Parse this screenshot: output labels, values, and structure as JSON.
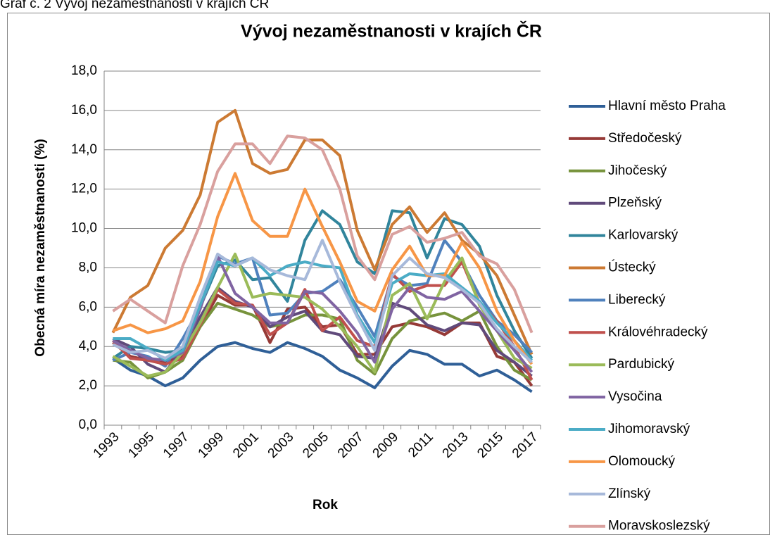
{
  "caption": "Graf č. 2 Vývoj nezaměstnanosti v krajích ČR",
  "chart_data": {
    "type": "line",
    "title": "Vývoj nezaměstnanosti v krajích ČR",
    "x_label": "Rok",
    "y_label": "Obecná míra nezaměstnanosti (%)",
    "categories": [
      "1993",
      null,
      "1995",
      null,
      "1997",
      null,
      "1999",
      null,
      "2001",
      null,
      "2003",
      null,
      "2005",
      null,
      "2007",
      null,
      "2009",
      null,
      "2011",
      null,
      "2013",
      null,
      "2015",
      null,
      "2017"
    ],
    "ylim": [
      0,
      18
    ],
    "yticks": [
      {
        "value": 0,
        "label": "0,0"
      },
      {
        "value": 2,
        "label": "2,0"
      },
      {
        "value": 4,
        "label": "4,0"
      },
      {
        "value": 6,
        "label": "6,0"
      },
      {
        "value": 8,
        "label": "8,0"
      },
      {
        "value": 10,
        "label": "10,0"
      },
      {
        "value": 12,
        "label": "12,0"
      },
      {
        "value": 14,
        "label": "14,0"
      },
      {
        "value": 16,
        "label": "16,0"
      },
      {
        "value": 18,
        "label": "18,0"
      }
    ],
    "grid": true,
    "legend": "right",
    "series": [
      {
        "name": "Hlavní město Praha",
        "color": "#2f5f97",
        "values": [
          3.4,
          2.8,
          2.5,
          2.0,
          2.4,
          3.3,
          4.0,
          4.2,
          3.9,
          3.7,
          4.2,
          3.9,
          3.5,
          2.8,
          2.4,
          1.9,
          3.0,
          3.8,
          3.6,
          3.1,
          3.1,
          2.5,
          2.8,
          2.3,
          1.7
        ]
      },
      {
        "name": "Středočeský",
        "color": "#963a37",
        "values": [
          4.2,
          3.5,
          3.3,
          3.2,
          3.5,
          5.0,
          6.6,
          6.1,
          6.1,
          4.2,
          5.9,
          6.0,
          5.0,
          5.1,
          3.6,
          3.6,
          5.0,
          5.2,
          5.0,
          4.6,
          5.2,
          5.2,
          3.5,
          3.2,
          2.0
        ]
      },
      {
        "name": "Jihočeský",
        "color": "#77933c",
        "values": [
          3.3,
          3.2,
          2.4,
          2.7,
          3.3,
          5.0,
          6.2,
          5.9,
          5.6,
          5.0,
          5.2,
          5.6,
          5.6,
          5.4,
          3.3,
          2.6,
          4.4,
          5.3,
          5.5,
          5.7,
          5.3,
          5.8,
          4.0,
          2.8,
          2.3
        ]
      },
      {
        "name": "Plzeňský",
        "color": "#604a7b",
        "values": [
          4.4,
          4.0,
          3.1,
          2.7,
          3.9,
          5.5,
          7.0,
          6.3,
          6.0,
          5.0,
          5.5,
          5.8,
          4.8,
          4.6,
          3.5,
          3.4,
          6.2,
          5.9,
          5.1,
          4.8,
          5.2,
          5.1,
          3.8,
          3.2,
          2.5
        ]
      },
      {
        "name": "Karlovarský",
        "color": "#31859c",
        "values": [
          3.4,
          4.0,
          3.9,
          3.7,
          3.8,
          6.0,
          8.1,
          8.4,
          7.4,
          7.5,
          6.3,
          9.4,
          10.9,
          10.2,
          8.3,
          7.7,
          10.9,
          10.8,
          8.5,
          10.5,
          10.2,
          9.1,
          6.6,
          4.8,
          3.4
        ]
      },
      {
        "name": "Ústecký",
        "color": "#cc7a33",
        "values": [
          4.7,
          6.5,
          7.1,
          9.0,
          9.9,
          11.7,
          15.4,
          16.0,
          13.3,
          12.8,
          13.0,
          14.5,
          14.5,
          13.7,
          9.9,
          7.9,
          10.2,
          11.1,
          9.8,
          10.8,
          9.4,
          8.7,
          7.6,
          5.6,
          3.6
        ]
      },
      {
        "name": "Liberecký",
        "color": "#4f81bd",
        "values": [
          3.3,
          3.7,
          3.5,
          3.0,
          4.4,
          6.0,
          8.6,
          8.2,
          8.5,
          5.6,
          5.7,
          6.7,
          6.8,
          7.4,
          6.0,
          4.5,
          7.6,
          7.1,
          7.2,
          9.4,
          8.3,
          6.6,
          5.3,
          4.6,
          3.7
        ]
      },
      {
        "name": "Královéhradecký",
        "color": "#c0504d",
        "values": [
          4.3,
          3.4,
          3.3,
          3.1,
          3.4,
          5.1,
          6.9,
          6.2,
          6.1,
          4.6,
          5.2,
          6.9,
          4.8,
          5.5,
          4.3,
          4.0,
          7.7,
          6.8,
          7.1,
          7.1,
          8.3,
          6.2,
          5.3,
          4.0,
          2.3
        ]
      },
      {
        "name": "Pardubický",
        "color": "#9bbb59",
        "values": [
          3.5,
          3.0,
          2.5,
          2.7,
          3.7,
          5.2,
          7.0,
          8.7,
          6.5,
          6.7,
          6.6,
          6.5,
          5.9,
          5.0,
          4.0,
          2.7,
          6.6,
          7.2,
          5.4,
          7.3,
          8.5,
          6.1,
          4.8,
          3.4,
          2.9
        ]
      },
      {
        "name": "Vysočina",
        "color": "#8064a2",
        "values": [
          4.3,
          3.8,
          3.4,
          3.3,
          3.7,
          5.9,
          8.6,
          6.7,
          6.0,
          5.2,
          5.2,
          6.8,
          6.7,
          5.8,
          4.7,
          3.2,
          5.9,
          7.0,
          6.5,
          6.4,
          6.8,
          5.8,
          4.8,
          3.8,
          2.7
        ]
      },
      {
        "name": "Jihomoravský",
        "color": "#4bacc6",
        "values": [
          4.4,
          4.4,
          3.9,
          3.3,
          3.8,
          6.1,
          8.3,
          8.1,
          8.5,
          7.6,
          8.1,
          8.3,
          8.1,
          8.0,
          5.6,
          4.2,
          7.2,
          7.7,
          7.6,
          7.7,
          7.0,
          6.3,
          5.2,
          4.3,
          3.3
        ]
      },
      {
        "name": "Olomoucký",
        "color": "#f79646",
        "values": [
          4.8,
          5.1,
          4.7,
          4.9,
          5.3,
          7.3,
          10.6,
          12.8,
          10.4,
          9.6,
          9.6,
          12.0,
          10.1,
          8.3,
          6.3,
          5.8,
          7.9,
          9.1,
          7.6,
          7.6,
          9.3,
          8.0,
          5.8,
          4.3,
          3.1
        ]
      },
      {
        "name": "Zlínský",
        "color": "#a7b9da",
        "values": [
          4.1,
          3.7,
          3.8,
          3.4,
          4.0,
          6.5,
          8.7,
          8.1,
          8.5,
          7.9,
          7.6,
          7.4,
          9.4,
          7.3,
          5.5,
          3.8,
          7.6,
          8.5,
          7.7,
          7.5,
          6.9,
          6.2,
          4.9,
          4.0,
          3.2
        ]
      },
      {
        "name": "Moravskoslezský",
        "color": "#d9a09e",
        "values": [
          5.8,
          6.4,
          5.8,
          5.2,
          8.1,
          10.2,
          12.9,
          14.3,
          14.3,
          13.3,
          14.7,
          14.6,
          14.0,
          12.0,
          8.6,
          7.4,
          9.7,
          10.1,
          9.3,
          9.5,
          9.8,
          8.6,
          8.2,
          6.9,
          4.7
        ]
      }
    ]
  }
}
